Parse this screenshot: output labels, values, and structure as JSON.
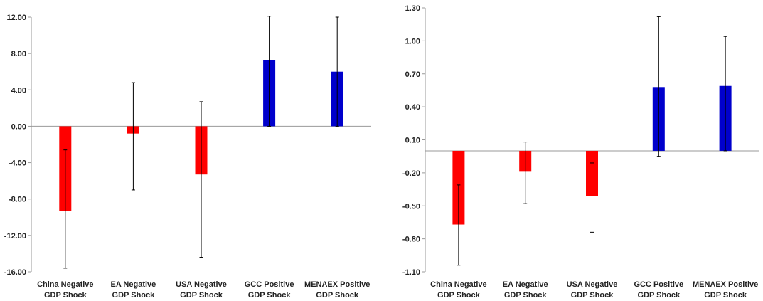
{
  "chart_data": [
    {
      "type": "bar",
      "categories": [
        [
          "China Negative",
          "GDP Shock"
        ],
        [
          "EA Negative",
          "GDP Shock"
        ],
        [
          "USA Negative",
          "GDP Shock"
        ],
        [
          "GCC Positive",
          "GDP Shock"
        ],
        [
          "MENAEX Positive",
          "GDP Shock"
        ]
      ],
      "values": [
        -9.3,
        -0.8,
        -5.3,
        7.3,
        6.0
      ],
      "error_low": [
        -15.6,
        -7.0,
        -14.4,
        0.0,
        0.0
      ],
      "error_high": [
        -2.6,
        4.8,
        2.7,
        12.1,
        12.0
      ],
      "ylim": [
        -16,
        12
      ],
      "yticks": [
        12,
        8,
        4,
        0,
        -4,
        -8,
        -12,
        -16
      ],
      "ytick_labels": [
        "12.00",
        "8.00",
        "4.00",
        "0.00",
        "-4.00",
        "-8.00",
        "-12.00",
        "-16.00"
      ],
      "colors": [
        "#ff0000",
        "#ff0000",
        "#ff0000",
        "#0000cc",
        "#0000cc"
      ],
      "grid": false
    },
    {
      "type": "bar",
      "categories": [
        [
          "China Negative",
          "GDP Shock"
        ],
        [
          "EA Negative",
          "GDP Shock"
        ],
        [
          "USA Negative",
          "GDP Shock"
        ],
        [
          "GCC Positive",
          "GDP Shock"
        ],
        [
          "MENAEX Positive",
          "GDP Shock"
        ]
      ],
      "values": [
        -0.67,
        -0.19,
        -0.41,
        0.58,
        0.59
      ],
      "error_low": [
        -1.04,
        -0.48,
        -0.74,
        -0.05,
        0.0
      ],
      "error_high": [
        -0.31,
        0.08,
        -0.11,
        1.22,
        1.04
      ],
      "ylim": [
        -1.1,
        1.3
      ],
      "yticks": [
        1.3,
        1.0,
        0.7,
        0.4,
        0.1,
        -0.2,
        -0.5,
        -0.8,
        -1.1
      ],
      "ytick_labels": [
        "1.30",
        "1.00",
        "0.70",
        "0.40",
        "0.10",
        "-0.20",
        "-0.50",
        "-0.80",
        "-1.10"
      ],
      "colors": [
        "#ff0000",
        "#ff0000",
        "#ff0000",
        "#0000cc",
        "#0000cc"
      ],
      "grid": false
    }
  ]
}
